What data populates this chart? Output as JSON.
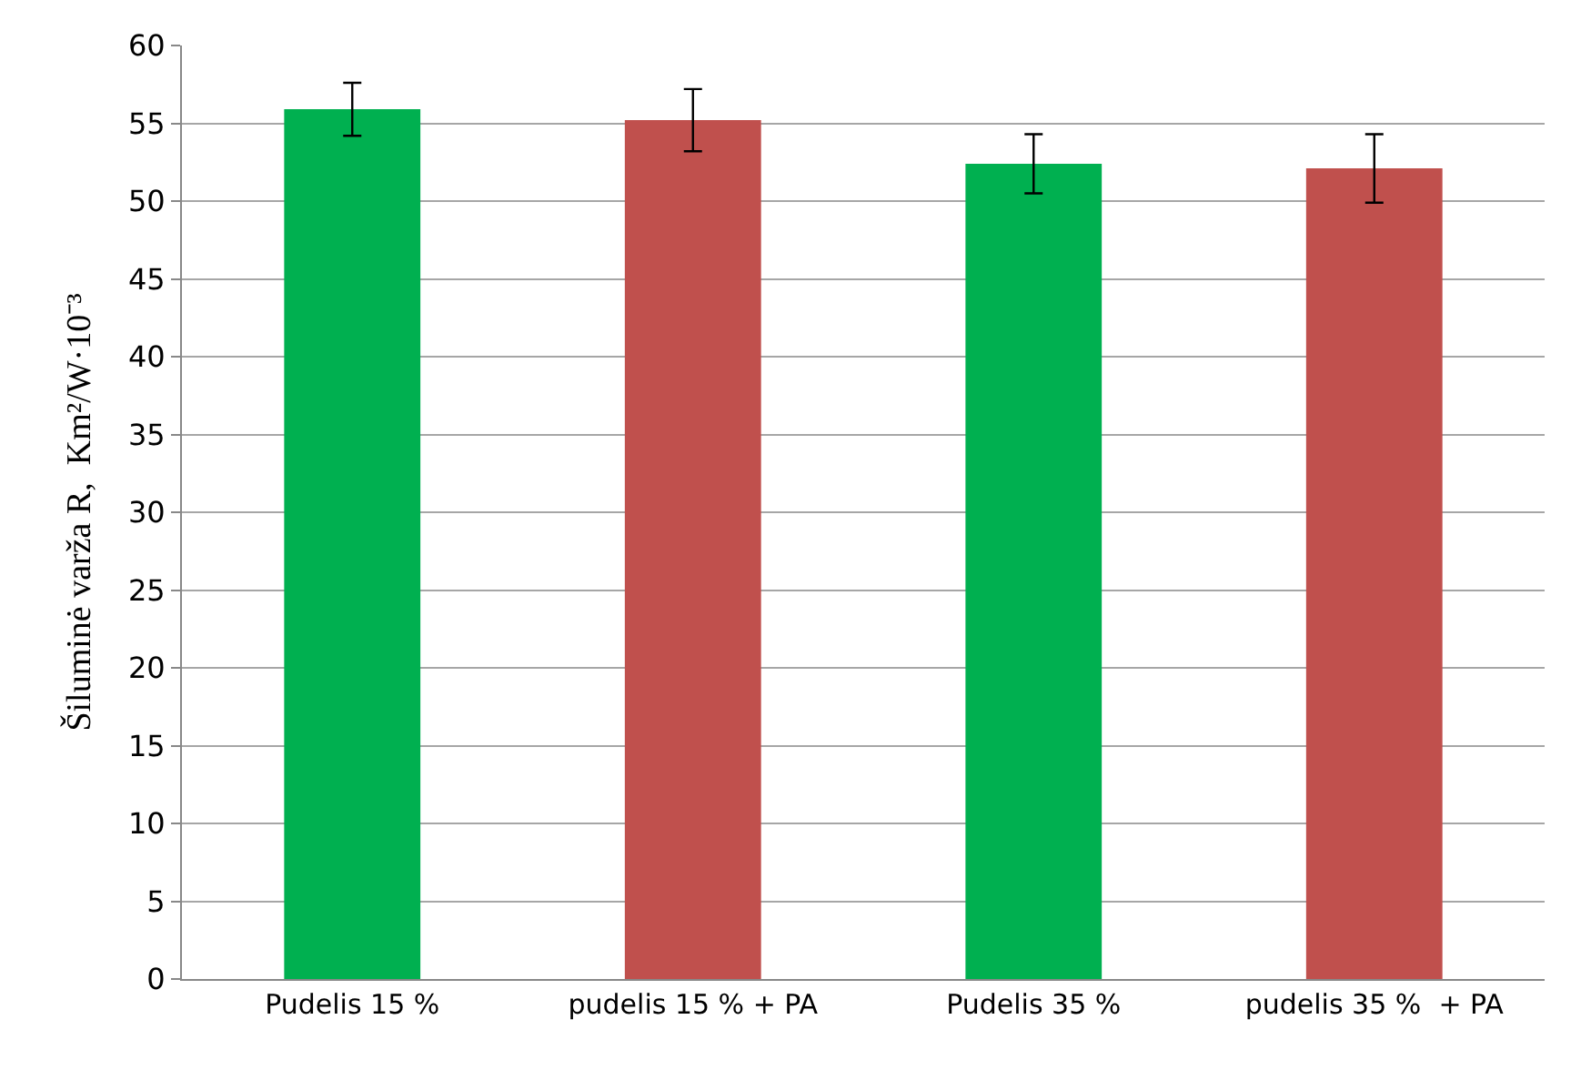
{
  "chart_data": {
    "type": "bar",
    "ylabel": "Šiluminė varža R,  Km²/W·10⁻³",
    "categories": [
      "Pudelis 15 %",
      "pudelis 15 % + PA",
      "Pudelis 35 %",
      "pudelis 35 %  + PA"
    ],
    "values": [
      55.9,
      55.2,
      52.4,
      52.1
    ],
    "colors": [
      "#00b050",
      "#c0504d",
      "#00b050",
      "#c0504d"
    ],
    "errors": [
      1.7,
      2.0,
      1.9,
      2.2
    ],
    "ylim": [
      0,
      60
    ],
    "yticks": [
      0,
      5,
      10,
      15,
      20,
      25,
      30,
      35,
      40,
      45,
      50,
      55,
      60
    ],
    "grid": "y"
  }
}
